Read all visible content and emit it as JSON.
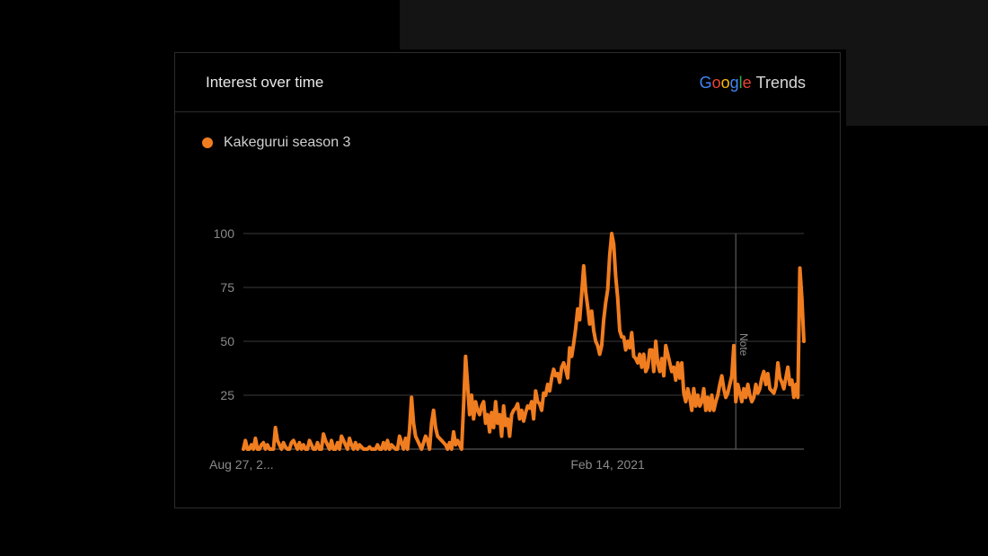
{
  "card": {
    "title": "Interest over time",
    "brand": {
      "letters": [
        {
          "ch": "G",
          "color": "#4285f4"
        },
        {
          "ch": "o",
          "color": "#ea4335"
        },
        {
          "ch": "o",
          "color": "#fbbc05"
        },
        {
          "ch": "g",
          "color": "#4285f4"
        },
        {
          "ch": "l",
          "color": "#34a853"
        },
        {
          "ch": "e",
          "color": "#ea4335"
        }
      ],
      "suffix": "Trends"
    }
  },
  "colors": {
    "series": "#f07d1f",
    "grid": "#3a3a3a",
    "axis": "#6a6a6a",
    "annotation_line": "#5a5a5a"
  },
  "chart_data": {
    "type": "line",
    "title": "Interest over time",
    "ylim": [
      0,
      100
    ],
    "yticks": [
      25,
      50,
      75,
      100
    ],
    "grid": true,
    "legend_position": "top-left",
    "x_tick_labels": [
      {
        "index": 0,
        "label": "Aug 27, 2..."
      },
      {
        "index": 182,
        "label": "Feb 14, 2021"
      }
    ],
    "annotation": {
      "index": 246,
      "label": "Note"
    },
    "series": [
      {
        "name": "Kakegurui season 3",
        "values": [
          0,
          4,
          0,
          0,
          2,
          0,
          5,
          0,
          0,
          2,
          3,
          0,
          2,
          0,
          0,
          0,
          10,
          4,
          2,
          0,
          3,
          1,
          0,
          0,
          3,
          4,
          2,
          0,
          3,
          0,
          2,
          0,
          0,
          4,
          2,
          0,
          0,
          3,
          0,
          0,
          7,
          4,
          2,
          0,
          4,
          0,
          0,
          3,
          0,
          6,
          4,
          2,
          0,
          5,
          2,
          0,
          3,
          0,
          2,
          1,
          0,
          0,
          0,
          1,
          0,
          0,
          0,
          2,
          0,
          0,
          3,
          0,
          4,
          0,
          2,
          1,
          0,
          0,
          6,
          3,
          0,
          5,
          0,
          9,
          24,
          12,
          6,
          4,
          2,
          0,
          3,
          6,
          4,
          0,
          12,
          18,
          10,
          6,
          5,
          4,
          3,
          2,
          0,
          3,
          0,
          8,
          2,
          4,
          2,
          0,
          20,
          43,
          30,
          16,
          25,
          14,
          22,
          18,
          16,
          20,
          22,
          12,
          16,
          8,
          17,
          10,
          22,
          12,
          16,
          6,
          20,
          11,
          14,
          6,
          16,
          18,
          19,
          21,
          14,
          18,
          13,
          17,
          20,
          19,
          22,
          14,
          27,
          22,
          21,
          18,
          26,
          25,
          30,
          27,
          33,
          37,
          34,
          35,
          31,
          38,
          40,
          37,
          33,
          47,
          43,
          49,
          56,
          65,
          60,
          72,
          85,
          73,
          66,
          58,
          64,
          55,
          50,
          48,
          44,
          48,
          60,
          68,
          74,
          90,
          100,
          95,
          80,
          70,
          55,
          52,
          52,
          46,
          50,
          47,
          54,
          43,
          42,
          40,
          44,
          38,
          44,
          36,
          38,
          46,
          46,
          36,
          50,
          40,
          36,
          42,
          34,
          48,
          44,
          40,
          36,
          38,
          32,
          40,
          33,
          40,
          26,
          22,
          28,
          24,
          18,
          28,
          20,
          25,
          20,
          22,
          28,
          18,
          24,
          18,
          25,
          18,
          22,
          25,
          30,
          34,
          28,
          24,
          26,
          30,
          34,
          48,
          22,
          30,
          26,
          22,
          28,
          24,
          30,
          25,
          22,
          24,
          30,
          26,
          28,
          33,
          36,
          30,
          35,
          28,
          27,
          26,
          29,
          40,
          33,
          31,
          28,
          33,
          38,
          30,
          32,
          24,
          30,
          24,
          84,
          70,
          50
        ]
      }
    ]
  }
}
